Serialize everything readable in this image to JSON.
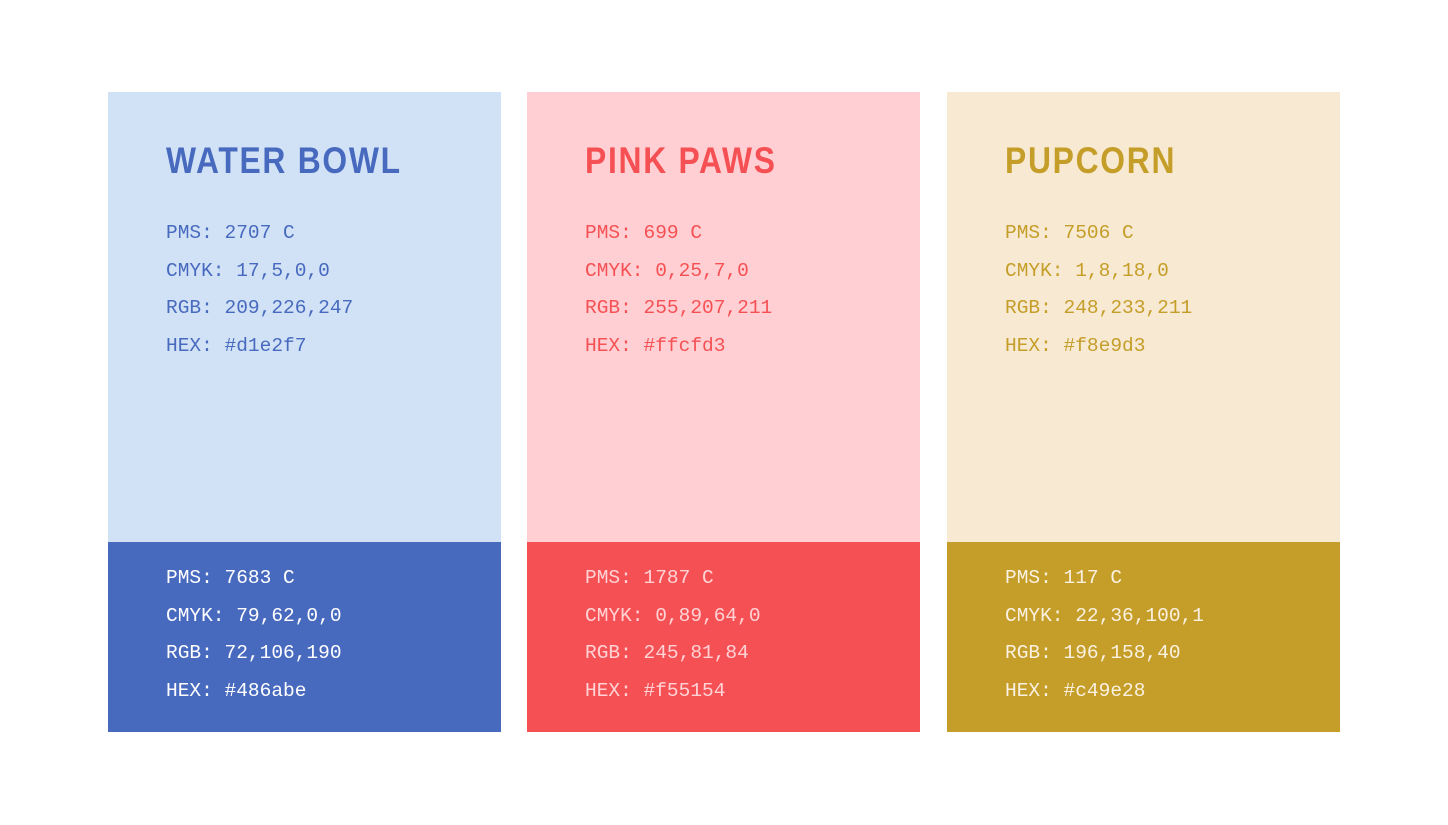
{
  "palette": [
    {
      "name": "WATER BOWL",
      "light": {
        "bg": "#d1e2f7",
        "fg": "#486abe",
        "pms": "PMS: 2707 C",
        "cmyk": "CMYK: 17,5,0,0",
        "rgb": "RGB: 209,226,247",
        "hex": "HEX: #d1e2f7"
      },
      "dark": {
        "bg": "#486abe",
        "fg": "#ffffff",
        "pms": "PMS: 7683 C",
        "cmyk": "CMYK: 79,62,0,0",
        "rgb": "RGB: 72,106,190",
        "hex": "HEX: #486abe"
      }
    },
    {
      "name": "PINK PAWS",
      "light": {
        "bg": "#ffcfd3",
        "fg": "#f55154",
        "pms": "PMS: 699 C",
        "cmyk": "CMYK: 0,25,7,0",
        "rgb": "RGB: 255,207,211",
        "hex": "HEX: #ffcfd3"
      },
      "dark": {
        "bg": "#f55154",
        "fg": "#ffd3d6",
        "pms": "PMS: 1787 C",
        "cmyk": "CMYK: 0,89,64,0",
        "rgb": "RGB: 245,81,84",
        "hex": "HEX: #f55154"
      }
    },
    {
      "name": "PUPCORN",
      "light": {
        "bg": "#f8e9d3",
        "fg": "#c49e28",
        "pms": "PMS: 7506 C",
        "cmyk": "CMYK: 1,8,18,0",
        "rgb": "RGB: 248,233,211",
        "hex": "HEX: #f8e9d3"
      },
      "dark": {
        "bg": "#c49e28",
        "fg": "#fbf1e2",
        "pms": "PMS: 117 C",
        "cmyk": "CMYK: 22,36,100,1",
        "rgb": "RGB: 196,158,40",
        "hex": "HEX: #c49e28"
      }
    }
  ]
}
